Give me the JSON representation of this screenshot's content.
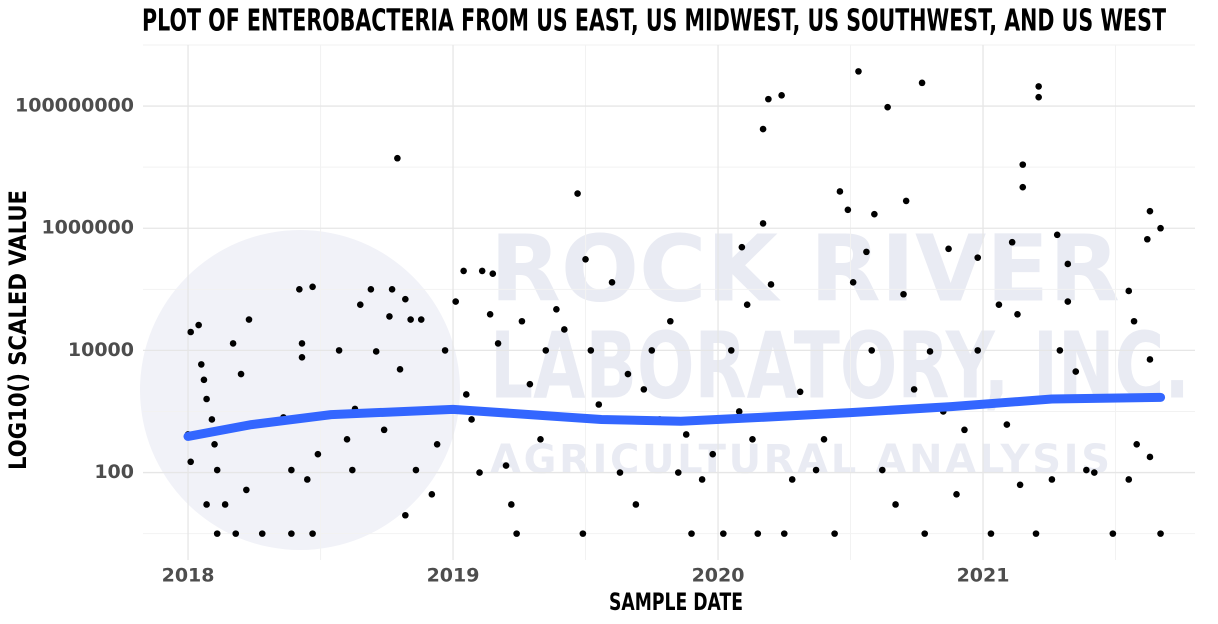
{
  "chart_data": {
    "type": "scatter",
    "title": "PLOT OF ENTEROBACTERIA FROM US EAST, US MIDWEST, US SOUTHWEST, AND US WEST",
    "x_label": "SAMPLE DATE",
    "y_label": "LOG10() SCALED VALUE",
    "watermark": {
      "lines": [
        "ROCK RIVER",
        "LABORATORY, INC."
      ],
      "tagline": "AGRICULTURAL ANALYSIS"
    },
    "xlim": [
      2017.83,
      2021.8
    ],
    "xticks": [
      2018,
      2019,
      2020,
      2021
    ],
    "ylim": [
      3.7,
      1000000000
    ],
    "yticks": [
      100,
      10000,
      1000000,
      100000000
    ],
    "yscale": "log",
    "grid": true,
    "series": [
      {
        "type": "scatter",
        "color": "#000000",
        "x": [
          2018.01,
          2018.04,
          2018.01,
          2018.0,
          2018.05,
          2018.06,
          2018.07,
          2018.09,
          2018.1,
          2018.11,
          2018.07,
          2018.11,
          2018.14,
          2018.18,
          2018.17,
          2018.2,
          2018.23,
          2018.22,
          2018.28,
          2018.36,
          2018.39,
          2018.42,
          2018.43,
          2018.43,
          2018.45,
          2018.47,
          2018.49,
          2018.47,
          2018.39,
          2018.57,
          2018.6,
          2018.62,
          2018.63,
          2018.65,
          2018.69,
          2018.71,
          2018.74,
          2018.76,
          2018.77,
          2018.79,
          2018.8,
          2018.82,
          2018.84,
          2018.86,
          2018.82,
          2018.88,
          2018.92,
          2018.94,
          2018.97,
          2019.01,
          2019.04,
          2019.05,
          2019.07,
          2019.1,
          2019.11,
          2019.15,
          2019.14,
          2019.17,
          2019.2,
          2019.22,
          2019.24,
          2019.26,
          2019.29,
          2019.33,
          2019.35,
          2019.39,
          2019.42,
          2019.47,
          2019.49,
          2019.5,
          2019.52,
          2019.55,
          2019.58,
          2019.6,
          2019.63,
          2019.66,
          2019.69,
          2019.72,
          2019.75,
          2019.78,
          2019.82,
          2019.85,
          2019.88,
          2019.9,
          2019.94,
          2019.98,
          2020.02,
          2020.05,
          2020.08,
          2020.09,
          2020.11,
          2020.13,
          2020.15,
          2020.17,
          2020.17,
          2020.19,
          2020.24,
          2020.2,
          2020.25,
          2020.28,
          2020.31,
          2020.37,
          2020.4,
          2020.44,
          2020.46,
          2020.49,
          2020.51,
          2020.53,
          2020.56,
          2020.58,
          2020.59,
          2020.62,
          2020.64,
          2020.67,
          2020.7,
          2020.71,
          2020.74,
          2020.77,
          2020.78,
          2020.8,
          2020.85,
          2020.87,
          2020.9,
          2020.93,
          2020.98,
          2020.98,
          2021.03,
          2021.06,
          2021.09,
          2021.11,
          2021.13,
          2021.14,
          2021.15,
          2021.15,
          2021.2,
          2021.21,
          2021.21,
          2021.26,
          2021.28,
          2021.29,
          2021.32,
          2021.32,
          2021.35,
          2021.39,
          2021.42,
          2021.49,
          2021.55,
          2021.55,
          2021.57,
          2021.58,
          2021.62,
          2021.63,
          2021.63,
          2021.63,
          2021.67,
          2021.67
        ],
        "values": [
          20000,
          26000,
          150,
          420,
          5900,
          3300,
          1600,
          740,
          290,
          110,
          30,
          10,
          30,
          10,
          13000,
          4100,
          32000,
          52,
          10,
          800,
          110,
          100000,
          13000,
          7700,
          77,
          110000,
          200,
          10,
          10,
          10000,
          350,
          110,
          1100,
          56000,
          100000,
          9600,
          500,
          36000,
          100000,
          14000000,
          4900,
          69000,
          32000,
          110,
          20,
          32000,
          44,
          290,
          10000,
          63000,
          200000,
          1900,
          740,
          100,
          200000,
          180000,
          39000,
          13000,
          130,
          30,
          10,
          30000,
          2800,
          350,
          10000,
          47000,
          22000,
          3700000,
          10,
          310000,
          10000,
          1300,
          740,
          130000,
          100,
          4100,
          30,
          2300,
          10000,
          740,
          30000,
          100,
          420,
          10,
          77,
          200,
          10,
          10000,
          1000,
          490000,
          56000,
          350,
          10,
          1200000,
          42000000,
          130000000,
          150000000,
          120000,
          10,
          77,
          2100,
          110,
          350,
          10,
          4000000,
          2000000,
          130000,
          370000000,
          410000,
          10000,
          1700000,
          110,
          96000000,
          30,
          83000,
          2800000,
          2300,
          240000000,
          10,
          9600,
          1000,
          460000,
          44,
          500,
          330000,
          10000,
          10,
          56000,
          610,
          590000,
          39000,
          63,
          11000000,
          4700000,
          10,
          210000000,
          140000000,
          77,
          780000,
          10000,
          260000,
          63000,
          4500,
          110,
          100,
          10,
          94000,
          77,
          30000,
          290,
          660000,
          1900000,
          7100,
          180,
          1000000,
          10
        ]
      },
      {
        "type": "line",
        "color": "#3366ff",
        "x": [
          2018.0,
          2018.24,
          2018.54,
          2019.0,
          2019.29,
          2019.56,
          2019.86,
          2020.16,
          2020.5,
          2020.88,
          2021.26,
          2021.67
        ],
        "values": [
          390,
          610,
          890,
          1080,
          890,
          740,
          690,
          800,
          960,
          1200,
          1600,
          1700
        ]
      }
    ]
  }
}
